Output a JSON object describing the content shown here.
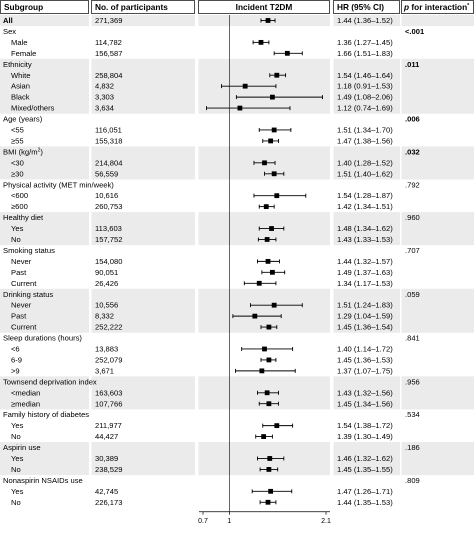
{
  "headers": {
    "subgroup": "Subgroup",
    "participants": "No. of participants",
    "plot": "Incident T2DM",
    "hr": "HR (95% CI)",
    "p_prefix": "p",
    "p_suffix": " for interaction",
    "p_sup": "*"
  },
  "chart_data": {
    "type": "forest",
    "x_axis": {
      "ticks": [
        0.7,
        1,
        2.1
      ],
      "tick_labels": [
        "0.7",
        "1",
        "2.1"
      ],
      "reference": 1,
      "range": [
        0.7,
        2.1
      ]
    },
    "rows": [
      {
        "kind": "overall",
        "label": "All",
        "n": "271,369",
        "hr": 1.44,
        "lo": 1.36,
        "hi": 1.52,
        "ci": "1.44 (1.36–1.52)",
        "p": "",
        "shade": true
      },
      {
        "kind": "header",
        "label": "Sex",
        "p": "<.001",
        "p_bold": true,
        "shade": false
      },
      {
        "kind": "row",
        "label": "Male",
        "n": "114,782",
        "hr": 1.36,
        "lo": 1.27,
        "hi": 1.45,
        "ci": "1.36 (1.27–1.45)",
        "shade": false
      },
      {
        "kind": "row",
        "label": "Female",
        "n": "156,587",
        "hr": 1.66,
        "lo": 1.51,
        "hi": 1.83,
        "ci": "1.66 (1.51–1.83)",
        "shade": false
      },
      {
        "kind": "header",
        "label": "Ethnicity",
        "p": ".011",
        "p_bold": true,
        "shade": true
      },
      {
        "kind": "row",
        "label": "White",
        "n": "258,804",
        "hr": 1.54,
        "lo": 1.46,
        "hi": 1.64,
        "ci": "1.54 (1.46–1.64)",
        "shade": true
      },
      {
        "kind": "row",
        "label": "Asian",
        "n": "4,832",
        "hr": 1.18,
        "lo": 0.91,
        "hi": 1.53,
        "ci": "1.18 (0.91–1.53)",
        "shade": true
      },
      {
        "kind": "row",
        "label": "Black",
        "n": "3,303",
        "hr": 1.49,
        "lo": 1.08,
        "hi": 2.06,
        "ci": "1.49 (1.08–2.06)",
        "shade": true
      },
      {
        "kind": "row",
        "label": "Mixed/others",
        "n": "3,634",
        "hr": 1.12,
        "lo": 0.74,
        "hi": 1.69,
        "ci": "1.12 (0.74–1.69)",
        "shade": true
      },
      {
        "kind": "header",
        "label": "Age (years)",
        "p": ".006",
        "p_bold": true,
        "shade": false
      },
      {
        "kind": "row",
        "label": "<55",
        "n": "116,051",
        "hr": 1.51,
        "lo": 1.34,
        "hi": 1.7,
        "ci": "1.51 (1.34–1.70)",
        "shade": false
      },
      {
        "kind": "row",
        "label": "≥55",
        "n": "155,318",
        "hr": 1.47,
        "lo": 1.38,
        "hi": 1.56,
        "ci": "1.47 (1.38–1.56)",
        "shade": false
      },
      {
        "kind": "header",
        "label": "BMI (kg/m",
        "label_sup": "2",
        "label_end": ")",
        "p": ".032",
        "p_bold": true,
        "shade": true
      },
      {
        "kind": "row",
        "label": "<30",
        "n": "214,804",
        "hr": 1.4,
        "lo": 1.28,
        "hi": 1.52,
        "ci": "1.40 (1.28–1.52)",
        "shade": true
      },
      {
        "kind": "row",
        "label": "≥30",
        "n": "56,559",
        "hr": 1.51,
        "lo": 1.4,
        "hi": 1.62,
        "ci": "1.51 (1.40–1.62)",
        "shade": true
      },
      {
        "kind": "header",
        "label": "Physical activity (MET min/week)",
        "p": ".792",
        "p_bold": false,
        "shade": false
      },
      {
        "kind": "row",
        "label": "<600",
        "n": "10,616",
        "hr": 1.54,
        "lo": 1.28,
        "hi": 1.87,
        "ci": "1.54 (1.28–1.87)",
        "shade": false
      },
      {
        "kind": "row",
        "label": "≥600",
        "n": "260,753",
        "hr": 1.42,
        "lo": 1.34,
        "hi": 1.51,
        "ci": "1.42 (1.34–1.51)",
        "shade": false
      },
      {
        "kind": "header",
        "label": "Healthy diet",
        "p": ".960",
        "p_bold": false,
        "shade": true
      },
      {
        "kind": "row",
        "label": "Yes",
        "n": "113,603",
        "hr": 1.48,
        "lo": 1.34,
        "hi": 1.62,
        "ci": "1.48 (1.34–1.62)",
        "shade": true
      },
      {
        "kind": "row",
        "label": "No",
        "n": "157,752",
        "hr": 1.43,
        "lo": 1.33,
        "hi": 1.53,
        "ci": "1.43 (1.33–1.53)",
        "shade": true
      },
      {
        "kind": "header",
        "label": "Smoking status",
        "p": ".707",
        "p_bold": false,
        "shade": false
      },
      {
        "kind": "row",
        "label": "Never",
        "n": "154,080",
        "hr": 1.44,
        "lo": 1.32,
        "hi": 1.57,
        "ci": "1.44 (1.32–1.57)",
        "shade": false
      },
      {
        "kind": "row",
        "label": "Past",
        "n": "90,051",
        "hr": 1.49,
        "lo": 1.37,
        "hi": 1.63,
        "ci": "1.49 (1.37–1.63)",
        "shade": false
      },
      {
        "kind": "row",
        "label": "Current",
        "n": "26,426",
        "hr": 1.34,
        "lo": 1.17,
        "hi": 1.53,
        "ci": "1.34 (1.17–1.53)",
        "shade": false
      },
      {
        "kind": "header",
        "label": "Drinking status",
        "p": ".059",
        "p_bold": false,
        "shade": true
      },
      {
        "kind": "row",
        "label": "Never",
        "n": "10,556",
        "hr": 1.51,
        "lo": 1.24,
        "hi": 1.83,
        "ci": "1.51 (1.24–1.83)",
        "shade": true
      },
      {
        "kind": "row",
        "label": "Past",
        "n": "8,332",
        "hr": 1.29,
        "lo": 1.04,
        "hi": 1.59,
        "ci": "1.29 (1.04–1.59)",
        "shade": true
      },
      {
        "kind": "row",
        "label": "Current",
        "n": "252,222",
        "hr": 1.45,
        "lo": 1.36,
        "hi": 1.54,
        "ci": "1.45 (1.36–1.54)",
        "shade": true
      },
      {
        "kind": "header",
        "label": "Sleep durations (hours)",
        "p": ".841",
        "p_bold": false,
        "shade": false
      },
      {
        "kind": "row",
        "label": "<6",
        "n": "13,883",
        "hr": 1.4,
        "lo": 1.14,
        "hi": 1.72,
        "ci": "1.40 (1.14–1.72)",
        "shade": false
      },
      {
        "kind": "row",
        "label": "6-9",
        "n": "252,079",
        "hr": 1.45,
        "lo": 1.36,
        "hi": 1.53,
        "ci": "1.45 (1.36–1.53)",
        "shade": false
      },
      {
        "kind": "row",
        "label": ">9",
        "n": "3,671",
        "hr": 1.37,
        "lo": 1.07,
        "hi": 1.75,
        "ci": "1.37 (1.07–1.75)",
        "shade": false
      },
      {
        "kind": "header",
        "label": "Townsend deprivation index",
        "p": ".956",
        "p_bold": false,
        "shade": true
      },
      {
        "kind": "row",
        "label": "<median",
        "n": "163,603",
        "hr": 1.43,
        "lo": 1.32,
        "hi": 1.56,
        "ci": "1.43 (1.32–1.56)",
        "shade": true
      },
      {
        "kind": "row",
        "label": "≥median",
        "n": "107,766",
        "hr": 1.45,
        "lo": 1.34,
        "hi": 1.56,
        "ci": "1.45 (1.34–1.56)",
        "shade": true
      },
      {
        "kind": "header",
        "label": "Family history of diabetes",
        "p": ".534",
        "p_bold": false,
        "shade": false
      },
      {
        "kind": "row",
        "label": "Yes",
        "n": "211,977",
        "hr": 1.54,
        "lo": 1.38,
        "hi": 1.72,
        "ci": "1.54 (1.38–1.72)",
        "shade": false
      },
      {
        "kind": "row",
        "label": "No",
        "n": "44,427",
        "hr": 1.39,
        "lo": 1.3,
        "hi": 1.49,
        "ci": "1.39 (1.30–1.49)",
        "shade": false
      },
      {
        "kind": "header",
        "label": "Aspirin use",
        "p": ".186",
        "p_bold": false,
        "shade": true
      },
      {
        "kind": "row",
        "label": "Yes",
        "n": "30,389",
        "hr": 1.46,
        "lo": 1.32,
        "hi": 1.62,
        "ci": "1.46 (1.32–1.62)",
        "shade": true
      },
      {
        "kind": "row",
        "label": "No",
        "n": "238,529",
        "hr": 1.45,
        "lo": 1.35,
        "hi": 1.55,
        "ci": "1.45 (1.35–1.55)",
        "shade": true
      },
      {
        "kind": "header",
        "label": "Nonaspirin NSAIDs use",
        "p": ".809",
        "p_bold": false,
        "shade": false
      },
      {
        "kind": "row",
        "label": "Yes",
        "n": "42,745",
        "hr": 1.47,
        "lo": 1.26,
        "hi": 1.71,
        "ci": "1.47 (1.26–1.71)",
        "shade": false
      },
      {
        "kind": "row",
        "label": "No",
        "n": "226,173",
        "hr": 1.44,
        "lo": 1.35,
        "hi": 1.53,
        "ci": "1.44 (1.35–1.53)",
        "shade": false
      }
    ]
  },
  "colors": {
    "shade": "#ebebeb",
    "ink": "#000000",
    "header_bg": "#ffffff"
  }
}
